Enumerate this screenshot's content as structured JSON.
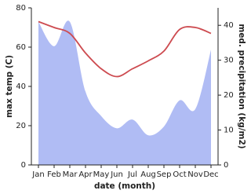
{
  "chart_data": {
    "type": "area-line",
    "x_label": "date (month)",
    "y_label": "max temp (C)",
    "y2_label": "med. precipitation (kg/m2)",
    "categories": [
      "Jan",
      "Feb",
      "Mar",
      "Apr",
      "May",
      "Jun",
      "Jul",
      "Aug",
      "Sep",
      "Oct",
      "Nov",
      "Dec"
    ],
    "ylim": [
      0,
      80
    ],
    "yticks": [
      0,
      20,
      40,
      60,
      80
    ],
    "y2lim": [
      0,
      45
    ],
    "y2ticks": [
      0,
      10,
      20,
      30,
      40
    ],
    "series": [
      {
        "name": "max temp (C)",
        "color": "#cd4b50",
        "kind": "line",
        "axis": "y",
        "values": [
          73,
          70,
          67,
          57,
          49,
          45,
          49,
          53,
          58,
          69,
          70,
          67
        ]
      },
      {
        "name": "med. precipitation (kg/m2)",
        "color": "#b0bcf4",
        "kind": "area",
        "axis": "y2",
        "values": [
          41,
          34,
          41,
          21,
          14,
          10.5,
          13,
          8.5,
          11,
          18.5,
          16,
          33
        ]
      }
    ]
  }
}
